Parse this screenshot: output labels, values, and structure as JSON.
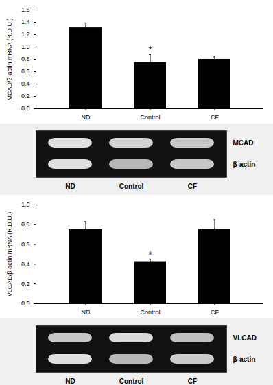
{
  "chart_data": [
    {
      "type": "bar",
      "categories": [
        "ND",
        "Control",
        "CF"
      ],
      "values": [
        1.31,
        0.75,
        0.8
      ],
      "errors": [
        0.08,
        0.13,
        0.04
      ],
      "color": "#000000",
      "ylabel": "MCAD/β-actin mRNA (R.D.U.)",
      "ylim": [
        0.0,
        1.6
      ],
      "yticks": [
        {
          "value": 0.0,
          "label": "0.0"
        },
        0.2,
        0.4,
        0.6,
        0.8,
        {
          "value": 1.0,
          "label": "1.0"
        },
        1.2,
        1.4,
        1.6
      ],
      "annotations": [
        {
          "x": "Control",
          "text": "*"
        }
      ]
    },
    {
      "type": "heatmap",
      "categories": [
        "ND",
        "Control",
        "CF"
      ],
      "rows": [
        "MCAD",
        "β-actin"
      ],
      "values": [
        [
          0.88,
          0.82,
          0.78
        ],
        [
          0.88,
          0.72,
          0.78
        ]
      ],
      "color": "#111111"
    },
    {
      "type": "bar",
      "categories": [
        "ND",
        "Control",
        "CF"
      ],
      "values": [
        0.75,
        0.42,
        0.75
      ],
      "errors": [
        0.08,
        0.03,
        0.1
      ],
      "color": "#000000",
      "ylabel": "VLCAD/β-actin mRNA (R.D.U.)",
      "ylim": [
        0.0,
        1.0
      ],
      "yticks": [
        {
          "value": 0.0,
          "label": "0.0"
        },
        0.2,
        0.4,
        0.6,
        0.8,
        {
          "value": 1.0,
          "label": "1.0"
        }
      ],
      "annotations": [
        {
          "x": "Control",
          "text": "*"
        }
      ]
    },
    {
      "type": "heatmap",
      "categories": [
        "ND",
        "Control",
        "CF"
      ],
      "rows": [
        "VLCAD",
        "β-actin"
      ],
      "values": [
        [
          0.78,
          0.85,
          0.75
        ],
        [
          0.88,
          0.72,
          0.8
        ]
      ],
      "color": "#111111"
    }
  ]
}
